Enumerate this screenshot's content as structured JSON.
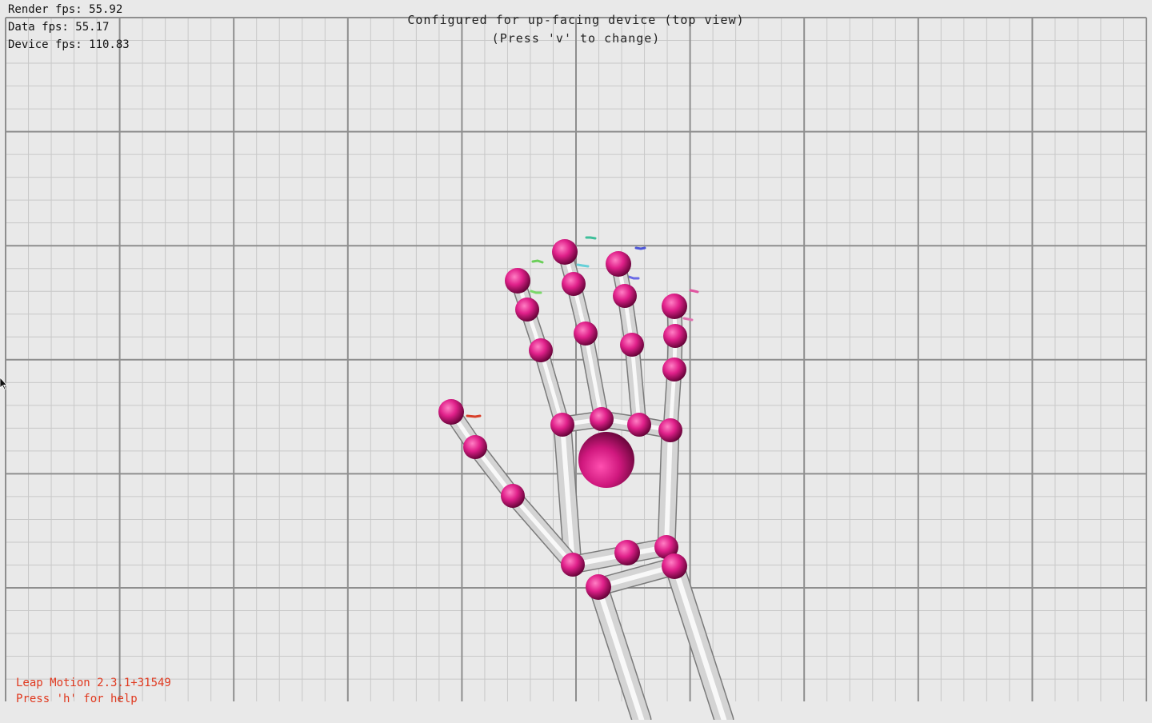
{
  "stats": {
    "render_fps": "Render fps: 55.92",
    "data_fps": "Data fps: 55.17",
    "device_fps": "Device fps: 110.83"
  },
  "banner": {
    "line1": "Configured for up-facing device (top view)",
    "line2": "(Press 'v' to change)"
  },
  "footer": {
    "version": "Leap Motion 2.3.1+31549",
    "help": "Press 'h' for help"
  },
  "colors": {
    "background": "#e9e9e9",
    "grid_major": "#8e8e8e",
    "grid_minor": "#c8c8c8",
    "joint": "#e0208a",
    "bone": "#d4d4d4",
    "footer_text": "#e0381e"
  },
  "icons": {
    "cursor": "arrow-cursor-icon"
  }
}
